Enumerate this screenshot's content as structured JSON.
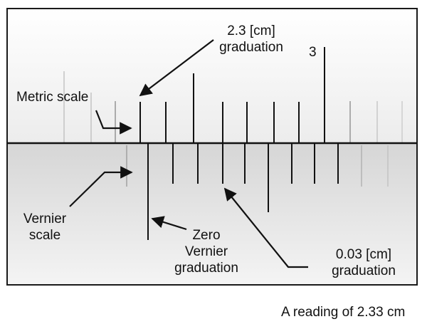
{
  "labels": {
    "graduation_23": [
      "2.3 [cm]",
      "graduation"
    ],
    "tick_3": "3",
    "metric_scale": "Metric scale",
    "vernier_scale": [
      "Vernier",
      "scale"
    ],
    "zero_vernier": [
      "Zero",
      "Vernier",
      "graduation"
    ],
    "graduation_003": [
      "0.03 [cm]",
      "graduation"
    ]
  },
  "caption": "A reading of 2.33 cm",
  "colors": {
    "ink": "#111111",
    "frame": "#1a1a1a",
    "paper_top": "#f2f2f2",
    "paper_bottom": "#d9d9d9",
    "faint_tick": "#b0b0b0"
  }
}
